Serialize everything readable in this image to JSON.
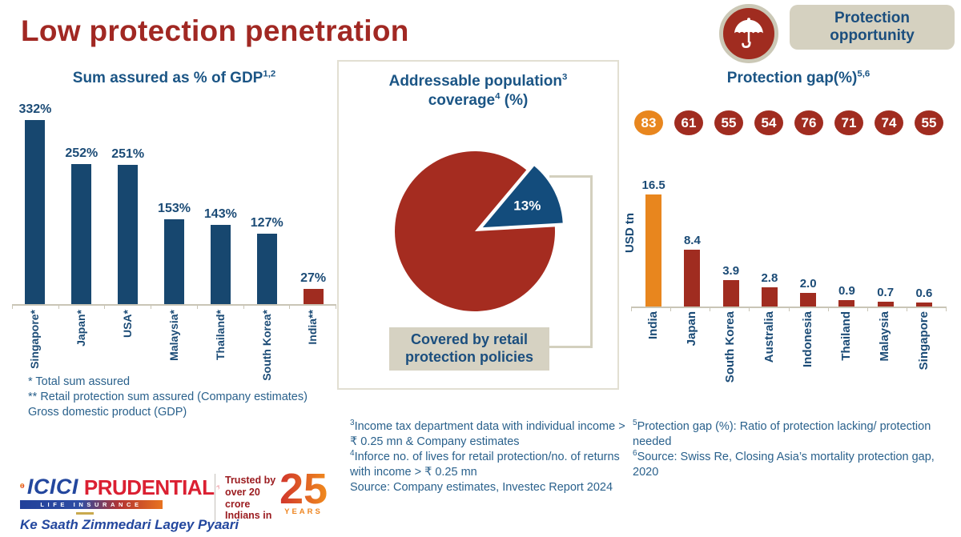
{
  "slide": {
    "title": "Low protection penetration"
  },
  "badge": {
    "label": "Protection opportunity"
  },
  "icons": {
    "umbrella": "umbrella-icon"
  },
  "colors": {
    "title_red": "#A12823",
    "navy": "#17476F",
    "navy_text": "#1B4B76",
    "blue_title": "#1B5585",
    "blue_footnote": "#2A618C",
    "red": "#A02C20",
    "orange": "#E8861E",
    "beige": "#D5D1C0",
    "beige_box": "#D6D2C2",
    "panel_border": "#E2DFD2",
    "bracket": "#D3D0BE",
    "axis": "#C9C5B6"
  },
  "chart_data": [
    {
      "id": "sum-assured-as-pct-of-gdp",
      "type": "bar",
      "title": "Sum assured as % of GDP",
      "title_sup": "1,2",
      "categories": [
        "Singapore*",
        "Japan*",
        "USA*",
        "Malaysia*",
        "Thailand*",
        "South Korea*",
        "India**"
      ],
      "values": [
        332,
        252,
        251,
        153,
        143,
        127,
        27
      ],
      "value_labels": [
        "332%",
        "252%",
        "251%",
        "153%",
        "143%",
        "127%",
        "27%"
      ],
      "bar_colors": [
        "navy",
        "navy",
        "navy",
        "navy",
        "navy",
        "navy",
        "red"
      ],
      "ylim": [
        0,
        350
      ],
      "grid": false,
      "legend": false
    },
    {
      "id": "addressable-population-coverage",
      "type": "pie",
      "title_parts": {
        "p1": "Addressable population",
        "s1": "3",
        "p2": "coverage",
        "s2": "4",
        "p3": " (%)"
      },
      "slices": [
        {
          "value": 13,
          "label": "13%",
          "color": "#134C7C",
          "exploded": true
        },
        {
          "value": 87,
          "label": "",
          "color": "#A52C20",
          "exploded": false
        }
      ],
      "callout": "Covered by retail protection policies",
      "legend": false
    },
    {
      "id": "protection-gap",
      "type": "bar",
      "title": "Protection gap(%)",
      "title_sup": "5,6",
      "gap_circle_values": [
        83,
        61,
        55,
        54,
        76,
        71,
        74,
        55
      ],
      "gap_circle_highlight_index": 0,
      "ylabel": "USD tn",
      "categories": [
        "India",
        "Japan",
        "South Korea",
        "Australia",
        "Indonesia",
        "Thailand",
        "Malaysia",
        "Singapore"
      ],
      "values": [
        16.5,
        8.4,
        3.9,
        2.8,
        2.0,
        0.9,
        0.7,
        0.6
      ],
      "value_labels": [
        "16.5",
        "8.4",
        "3.9",
        "2.8",
        "2.0",
        "0.9",
        "0.7",
        "0.6"
      ],
      "bar_colors": [
        "orange",
        "red",
        "red",
        "red",
        "red",
        "red",
        "red",
        "red"
      ],
      "ylim": [
        0,
        17
      ],
      "grid": false,
      "legend": false
    }
  ],
  "footnotes": {
    "left": [
      "* Total sum assured",
      "** Retail protection sum assured (Company estimates)",
      "Gross domestic product (GDP)"
    ],
    "middle": [
      {
        "sup": "3",
        "text": "Income tax department data with individual income > ₹ 0.25 mn & Company estimates"
      },
      {
        "sup": "4",
        "text": "Inforce no. of lives for retail protection/no. of returns with income > ₹ 0.25 mn"
      },
      {
        "sup": "",
        "text": "Source: Company estimates, Investec Report 2024"
      }
    ],
    "right": [
      {
        "sup": "5",
        "text": "Protection gap (%): Ratio of protection lacking/ protection needed"
      },
      {
        "sup": "6",
        "text": "Source: Swiss Re, Closing Asia’s mortality protection gap, 2020"
      }
    ]
  },
  "logo": {
    "icici": "ICICI",
    "prudential": "PRUDENTIAL",
    "band": "LIFE INSURANCE",
    "tagline": "Ke Saath Zimmedari Lagey Pyaari",
    "trusted": "Trusted by over 20 crore Indians in",
    "years_number": "25",
    "years_word": "YEARS"
  }
}
